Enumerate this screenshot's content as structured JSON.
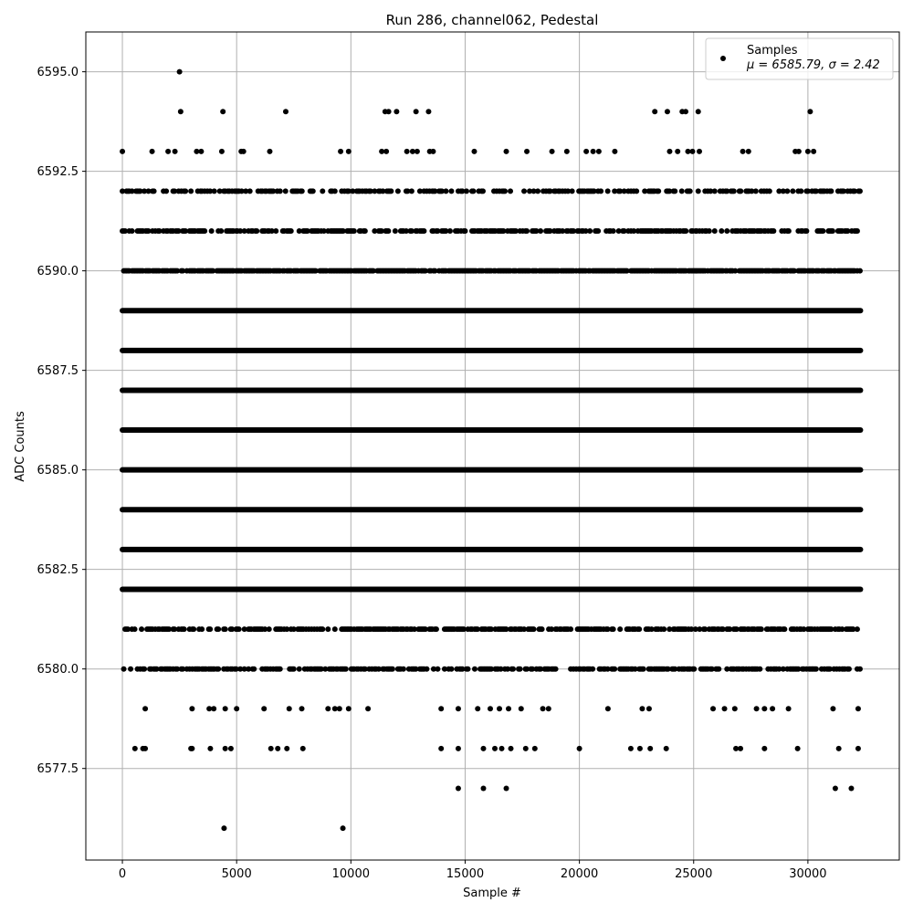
{
  "chart_data": {
    "type": "scatter",
    "title": "Run 286, channel062, Pedestal",
    "xlabel": "Sample #",
    "ylabel": "ADC Counts",
    "xlim": [
      -1600,
      34000
    ],
    "ylim": [
      6575.2,
      6596.0
    ],
    "x_ticks": [
      0,
      5000,
      10000,
      15000,
      20000,
      25000,
      30000
    ],
    "y_ticks": [
      6577.5,
      6580.0,
      6582.5,
      6585.0,
      6587.5,
      6590.0,
      6592.5,
      6595.0
    ],
    "x_tick_labels": [
      "0",
      "5000",
      "10000",
      "15000",
      "20000",
      "25000",
      "30000"
    ],
    "y_tick_labels": [
      "6577.5",
      "6580.0",
      "6582.5",
      "6585.0",
      "6587.5",
      "6590.0",
      "6592.5",
      "6595.0"
    ],
    "grid": true,
    "legend": {
      "position": "top-right",
      "series_name": "Samples",
      "stats_label": "μ = 6585.79, σ = 2.42"
    },
    "marker_color": "#000000",
    "series": [
      {
        "name": "Samples",
        "x_range": [
          0,
          32300
        ],
        "level_values": [
          6576,
          6577,
          6578,
          6579,
          6580,
          6581,
          6582,
          6583,
          6584,
          6585,
          6586,
          6587,
          6588,
          6589,
          6590,
          6591,
          6592,
          6593,
          6594,
          6595
        ],
        "dense_levels": [
          6582,
          6583,
          6584,
          6585,
          6586,
          6587,
          6588,
          6589
        ],
        "sparse_points": [
          {
            "x": 2500,
            "y": 6595
          },
          {
            "x": 2550,
            "y": 6594
          },
          {
            "x": 4400,
            "y": 6594
          },
          {
            "x": 7150,
            "y": 6594
          },
          {
            "x": 11500,
            "y": 6594
          },
          {
            "x": 11650,
            "y": 6594
          },
          {
            "x": 12000,
            "y": 6594
          },
          {
            "x": 12850,
            "y": 6594
          },
          {
            "x": 13400,
            "y": 6594
          },
          {
            "x": 23300,
            "y": 6594
          },
          {
            "x": 23850,
            "y": 6594
          },
          {
            "x": 24500,
            "y": 6594
          },
          {
            "x": 24650,
            "y": 6594
          },
          {
            "x": 25200,
            "y": 6594
          },
          {
            "x": 30100,
            "y": 6594
          },
          {
            "x": 0,
            "y": 6593
          },
          {
            "x": 1300,
            "y": 6593
          },
          {
            "x": 2000,
            "y": 6593
          },
          {
            "x": 2300,
            "y": 6593
          },
          {
            "x": 3250,
            "y": 6593
          },
          {
            "x": 3450,
            "y": 6593
          },
          {
            "x": 4350,
            "y": 6593
          },
          {
            "x": 5200,
            "y": 6593
          },
          {
            "x": 5300,
            "y": 6593
          },
          {
            "x": 6450,
            "y": 6593
          },
          {
            "x": 9550,
            "y": 6593
          },
          {
            "x": 9900,
            "y": 6593
          },
          {
            "x": 11350,
            "y": 6593
          },
          {
            "x": 11550,
            "y": 6593
          },
          {
            "x": 12450,
            "y": 6593
          },
          {
            "x": 12700,
            "y": 6593
          },
          {
            "x": 12900,
            "y": 6593
          },
          {
            "x": 13450,
            "y": 6593
          },
          {
            "x": 13600,
            "y": 6593
          },
          {
            "x": 15400,
            "y": 6593
          },
          {
            "x": 16800,
            "y": 6593
          },
          {
            "x": 17700,
            "y": 6593
          },
          {
            "x": 18800,
            "y": 6593
          },
          {
            "x": 19450,
            "y": 6593
          },
          {
            "x": 20300,
            "y": 6593
          },
          {
            "x": 20600,
            "y": 6593
          },
          {
            "x": 20850,
            "y": 6593
          },
          {
            "x": 21550,
            "y": 6593
          },
          {
            "x": 23950,
            "y": 6593
          },
          {
            "x": 24300,
            "y": 6593
          },
          {
            "x": 24750,
            "y": 6593
          },
          {
            "x": 24950,
            "y": 6593
          },
          {
            "x": 25250,
            "y": 6593
          },
          {
            "x": 27150,
            "y": 6593
          },
          {
            "x": 27400,
            "y": 6593
          },
          {
            "x": 29450,
            "y": 6593
          },
          {
            "x": 29600,
            "y": 6593
          },
          {
            "x": 30000,
            "y": 6593
          },
          {
            "x": 30250,
            "y": 6593
          },
          {
            "x": 1000,
            "y": 6579
          },
          {
            "x": 3050,
            "y": 6579
          },
          {
            "x": 3800,
            "y": 6579
          },
          {
            "x": 4000,
            "y": 6579
          },
          {
            "x": 4500,
            "y": 6579
          },
          {
            "x": 5000,
            "y": 6579
          },
          {
            "x": 6200,
            "y": 6579
          },
          {
            "x": 7300,
            "y": 6579
          },
          {
            "x": 7850,
            "y": 6579
          },
          {
            "x": 9000,
            "y": 6579
          },
          {
            "x": 9300,
            "y": 6579
          },
          {
            "x": 9500,
            "y": 6579
          },
          {
            "x": 9900,
            "y": 6579
          },
          {
            "x": 10750,
            "y": 6579
          },
          {
            "x": 13950,
            "y": 6579
          },
          {
            "x": 14700,
            "y": 6579
          },
          {
            "x": 15550,
            "y": 6579
          },
          {
            "x": 16100,
            "y": 6579
          },
          {
            "x": 16500,
            "y": 6579
          },
          {
            "x": 16900,
            "y": 6579
          },
          {
            "x": 17450,
            "y": 6579
          },
          {
            "x": 18400,
            "y": 6579
          },
          {
            "x": 18650,
            "y": 6579
          },
          {
            "x": 21250,
            "y": 6579
          },
          {
            "x": 22750,
            "y": 6579
          },
          {
            "x": 23050,
            "y": 6579
          },
          {
            "x": 25850,
            "y": 6579
          },
          {
            "x": 26350,
            "y": 6579
          },
          {
            "x": 26800,
            "y": 6579
          },
          {
            "x": 27750,
            "y": 6579
          },
          {
            "x": 28100,
            "y": 6579
          },
          {
            "x": 28450,
            "y": 6579
          },
          {
            "x": 29150,
            "y": 6579
          },
          {
            "x": 31100,
            "y": 6579
          },
          {
            "x": 32200,
            "y": 6579
          },
          {
            "x": 550,
            "y": 6578
          },
          {
            "x": 900,
            "y": 6578
          },
          {
            "x": 1000,
            "y": 6578
          },
          {
            "x": 3000,
            "y": 6578
          },
          {
            "x": 3050,
            "y": 6578
          },
          {
            "x": 3850,
            "y": 6578
          },
          {
            "x": 4500,
            "y": 6578
          },
          {
            "x": 4750,
            "y": 6578
          },
          {
            "x": 6500,
            "y": 6578
          },
          {
            "x": 6800,
            "y": 6578
          },
          {
            "x": 7200,
            "y": 6578
          },
          {
            "x": 7900,
            "y": 6578
          },
          {
            "x": 13950,
            "y": 6578
          },
          {
            "x": 14700,
            "y": 6578
          },
          {
            "x": 15800,
            "y": 6578
          },
          {
            "x": 16300,
            "y": 6578
          },
          {
            "x": 16600,
            "y": 6578
          },
          {
            "x": 17000,
            "y": 6578
          },
          {
            "x": 17650,
            "y": 6578
          },
          {
            "x": 18050,
            "y": 6578
          },
          {
            "x": 20000,
            "y": 6578
          },
          {
            "x": 22250,
            "y": 6578
          },
          {
            "x": 22650,
            "y": 6578
          },
          {
            "x": 23100,
            "y": 6578
          },
          {
            "x": 23800,
            "y": 6578
          },
          {
            "x": 26850,
            "y": 6578
          },
          {
            "x": 27050,
            "y": 6578
          },
          {
            "x": 28100,
            "y": 6578
          },
          {
            "x": 29550,
            "y": 6578
          },
          {
            "x": 31350,
            "y": 6578
          },
          {
            "x": 32200,
            "y": 6578
          },
          {
            "x": 14700,
            "y": 6577
          },
          {
            "x": 15800,
            "y": 6577
          },
          {
            "x": 16800,
            "y": 6577
          },
          {
            "x": 31200,
            "y": 6577
          },
          {
            "x": 31900,
            "y": 6577
          },
          {
            "x": 4450,
            "y": 6576
          },
          {
            "x": 9650,
            "y": 6576
          }
        ]
      }
    ]
  }
}
